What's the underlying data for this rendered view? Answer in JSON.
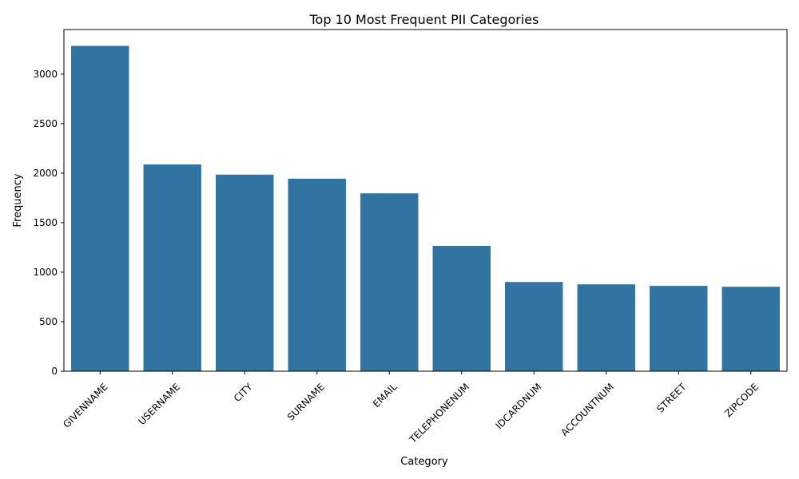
{
  "chart_data": {
    "type": "bar",
    "title": "Top 10 Most Frequent PII Categories",
    "xlabel": "Category",
    "ylabel": "Frequency",
    "categories": [
      "GIVENNAME",
      "USERNAME",
      "CITY",
      "SURNAME",
      "EMAIL",
      "TELEPHONENUM",
      "IDCARDNUM",
      "ACCOUNTNUM",
      "STREET",
      "ZIPCODE"
    ],
    "values": [
      3285,
      2088,
      1985,
      1944,
      1796,
      1266,
      901,
      877,
      862,
      853
    ],
    "ylim": [
      0,
      3450
    ],
    "yticks": [
      0,
      500,
      1000,
      1500,
      2000,
      2500,
      3000
    ],
    "xtick_rotation_deg": 45,
    "grid": false,
    "legend": "none",
    "bar_color": "#3274a1"
  }
}
